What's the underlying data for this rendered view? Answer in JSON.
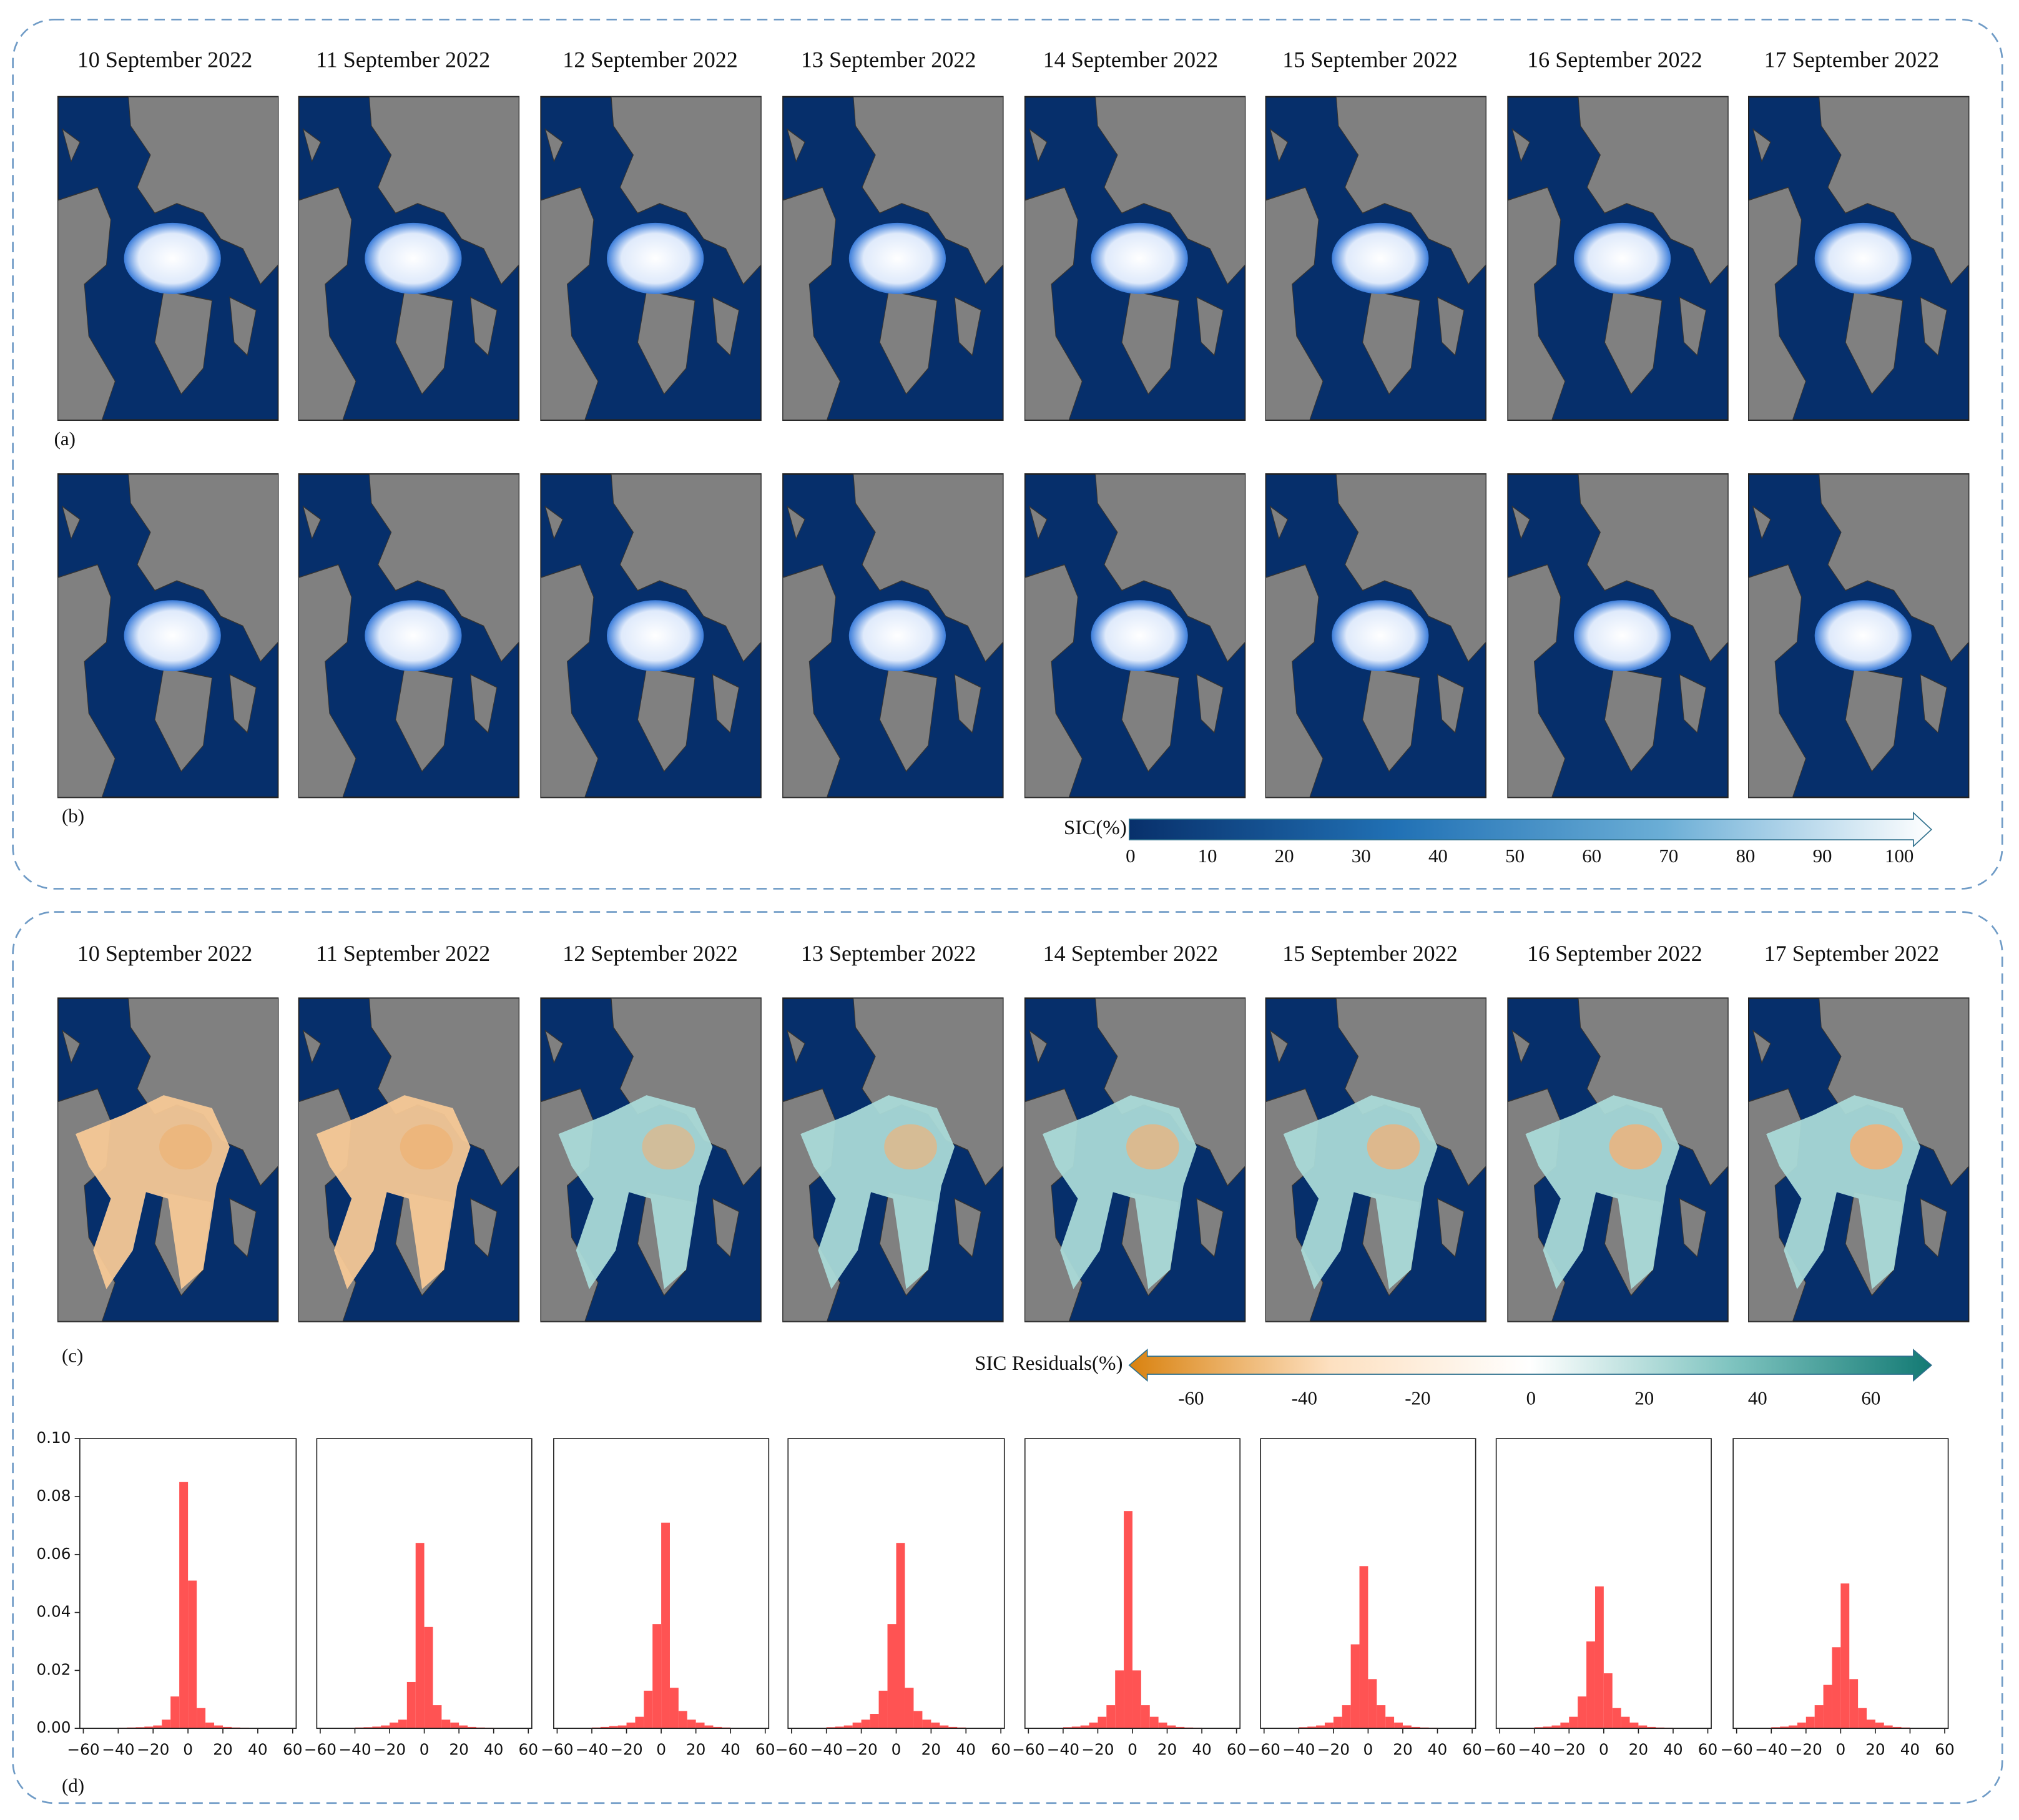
{
  "dates": [
    "10 September 2022",
    "11 September 2022",
    "12 September 2022",
    "13 September 2022",
    "14 September 2022",
    "15 September 2022",
    "16 September 2022",
    "17 September 2022"
  ],
  "panel_labels": [
    "(a)",
    "(b)",
    "(c)",
    "(d)"
  ],
  "colorbars": [
    {
      "label": "SIC(%)",
      "ticks": [
        0,
        10,
        20,
        30,
        40,
        50,
        60,
        70,
        80,
        90,
        100
      ],
      "colors": [
        "#08306b",
        "#2171b5",
        "#6baed6",
        "#ffffff"
      ]
    },
    {
      "label": "SIC Residuals(%)",
      "ticks": [
        -60,
        -40,
        -20,
        0,
        20,
        40,
        60
      ],
      "colors": [
        "#d9820f",
        "#fde0c0",
        "#ffffff",
        "#7fc4c0",
        "#137a74"
      ]
    }
  ],
  "chart_data": [
    {
      "type": "histogram",
      "color": "#ff4a4a",
      "bins": [
        -40,
        -35,
        -30,
        -25,
        -20,
        -15,
        -10,
        -5,
        0,
        5,
        10,
        15,
        20,
        25,
        30,
        35,
        40
      ],
      "values": [
        0.0002,
        0.0003,
        0.0004,
        0.0006,
        0.001,
        0.003,
        0.011,
        0.085,
        0.051,
        0.007,
        0.002,
        0.001,
        0.0005,
        0.0003,
        0.0002,
        0.0001
      ],
      "xlim": [
        -62,
        62
      ],
      "ylim": [
        0,
        0.1
      ],
      "xticks": [
        {
          "value": -60,
          "label": "−60"
        },
        {
          "value": -40,
          "label": "−40"
        },
        {
          "value": -20,
          "label": "−20"
        },
        0,
        20,
        40,
        60
      ],
      "yticks": [
        {
          "value": 0,
          "label": "0.00"
        },
        {
          "value": 0.02,
          "label": "0.02"
        },
        {
          "value": 0.04,
          "label": "0.04"
        },
        {
          "value": 0.06,
          "label": "0.06"
        },
        {
          "value": 0.08,
          "label": "0.08"
        },
        {
          "value": 0.1,
          "label": "0.10"
        }
      ]
    },
    {
      "type": "histogram",
      "color": "#ff4a4a",
      "bins": [
        -40,
        -35,
        -30,
        -25,
        -20,
        -15,
        -10,
        -5,
        0,
        5,
        10,
        15,
        20,
        25,
        30,
        35,
        40
      ],
      "values": [
        0.0003,
        0.0004,
        0.0006,
        0.001,
        0.002,
        0.003,
        0.016,
        0.064,
        0.035,
        0.008,
        0.003,
        0.002,
        0.001,
        0.0005,
        0.0003,
        0.0002
      ],
      "xlim": [
        -62,
        62
      ],
      "ylim": [
        0,
        0.1
      ],
      "xticks": [
        {
          "value": -60,
          "label": "−60"
        },
        {
          "value": -40,
          "label": "−40"
        },
        {
          "value": -20,
          "label": "−20"
        },
        0,
        20,
        40,
        60
      ]
    },
    {
      "type": "histogram",
      "color": "#ff4a4a",
      "bins": [
        -40,
        -35,
        -30,
        -25,
        -20,
        -15,
        -10,
        -5,
        0,
        5,
        10,
        15,
        20,
        25,
        30,
        35,
        40
      ],
      "values": [
        0.0003,
        0.0005,
        0.0008,
        0.001,
        0.002,
        0.004,
        0.013,
        0.036,
        0.071,
        0.014,
        0.006,
        0.003,
        0.002,
        0.001,
        0.0005,
        0.0003
      ],
      "xlim": [
        -62,
        62
      ],
      "ylim": [
        0,
        0.1
      ],
      "xticks": [
        {
          "value": -60,
          "label": "−60"
        },
        {
          "value": -40,
          "label": "−40"
        },
        {
          "value": -20,
          "label": "−20"
        },
        0,
        20,
        40,
        60
      ]
    },
    {
      "type": "histogram",
      "color": "#ff4a4a",
      "bins": [
        -40,
        -35,
        -30,
        -25,
        -20,
        -15,
        -10,
        -5,
        0,
        5,
        10,
        15,
        20,
        25,
        30,
        35,
        40
      ],
      "values": [
        0.0004,
        0.0006,
        0.001,
        0.002,
        0.003,
        0.005,
        0.013,
        0.036,
        0.064,
        0.014,
        0.006,
        0.003,
        0.002,
        0.001,
        0.0005,
        0.0003
      ],
      "xlim": [
        -62,
        62
      ],
      "ylim": [
        0,
        0.1
      ],
      "xticks": [
        {
          "value": -60,
          "label": "−60"
        },
        {
          "value": -40,
          "label": "−40"
        },
        {
          "value": -20,
          "label": "−20"
        },
        0,
        20,
        40,
        60
      ]
    },
    {
      "type": "histogram",
      "color": "#ff4a4a",
      "bins": [
        -40,
        -35,
        -30,
        -25,
        -20,
        -15,
        -10,
        -5,
        0,
        5,
        10,
        15,
        20,
        25,
        30,
        35,
        40
      ],
      "values": [
        0.0004,
        0.0006,
        0.001,
        0.002,
        0.004,
        0.008,
        0.02,
        0.075,
        0.02,
        0.008,
        0.004,
        0.002,
        0.001,
        0.0005,
        0.0003,
        0.0002
      ],
      "xlim": [
        -62,
        62
      ],
      "ylim": [
        0,
        0.1
      ],
      "xticks": [
        {
          "value": -60,
          "label": "−60"
        },
        {
          "value": -40,
          "label": "−40"
        },
        {
          "value": -20,
          "label": "−20"
        },
        0,
        20,
        40,
        60
      ]
    },
    {
      "type": "histogram",
      "color": "#ff4a4a",
      "bins": [
        -40,
        -35,
        -30,
        -25,
        -20,
        -15,
        -10,
        -5,
        0,
        5,
        10,
        15,
        20,
        25,
        30,
        35,
        40
      ],
      "values": [
        0.0004,
        0.0006,
        0.001,
        0.002,
        0.004,
        0.008,
        0.029,
        0.056,
        0.017,
        0.008,
        0.004,
        0.002,
        0.001,
        0.0005,
        0.0003,
        0.0002
      ],
      "xlim": [
        -62,
        62
      ],
      "ylim": [
        0,
        0.1
      ],
      "xticks": [
        {
          "value": -60,
          "label": "−60"
        },
        {
          "value": -40,
          "label": "−40"
        },
        {
          "value": -20,
          "label": "−20"
        },
        0,
        20,
        40,
        60
      ]
    },
    {
      "type": "histogram",
      "color": "#ff4a4a",
      "bins": [
        -40,
        -35,
        -30,
        -25,
        -20,
        -15,
        -10,
        -5,
        0,
        5,
        10,
        15,
        20,
        25,
        30,
        35,
        40
      ],
      "values": [
        0.0004,
        0.0006,
        0.001,
        0.002,
        0.004,
        0.011,
        0.03,
        0.049,
        0.019,
        0.007,
        0.004,
        0.002,
        0.001,
        0.0005,
        0.0003,
        0.0002
      ],
      "xlim": [
        -62,
        62
      ],
      "ylim": [
        0,
        0.1
      ],
      "xticks": [
        {
          "value": -60,
          "label": "−60"
        },
        {
          "value": -40,
          "label": "−40"
        },
        {
          "value": -20,
          "label": "−20"
        },
        0,
        20,
        40,
        60
      ]
    },
    {
      "type": "histogram",
      "color": "#ff4a4a",
      "bins": [
        -40,
        -35,
        -30,
        -25,
        -20,
        -15,
        -10,
        -5,
        0,
        5,
        10,
        15,
        20,
        25,
        30,
        35,
        40
      ],
      "values": [
        0.0004,
        0.0006,
        0.001,
        0.002,
        0.004,
        0.008,
        0.015,
        0.028,
        0.05,
        0.017,
        0.007,
        0.003,
        0.002,
        0.001,
        0.0005,
        0.0003
      ],
      "xlim": [
        -62,
        62
      ],
      "ylim": [
        0,
        0.1
      ],
      "xticks": [
        {
          "value": -60,
          "label": "−60"
        },
        {
          "value": -40,
          "label": "−40"
        },
        {
          "value": -20,
          "label": "−20"
        },
        0,
        20,
        40,
        60
      ]
    }
  ]
}
